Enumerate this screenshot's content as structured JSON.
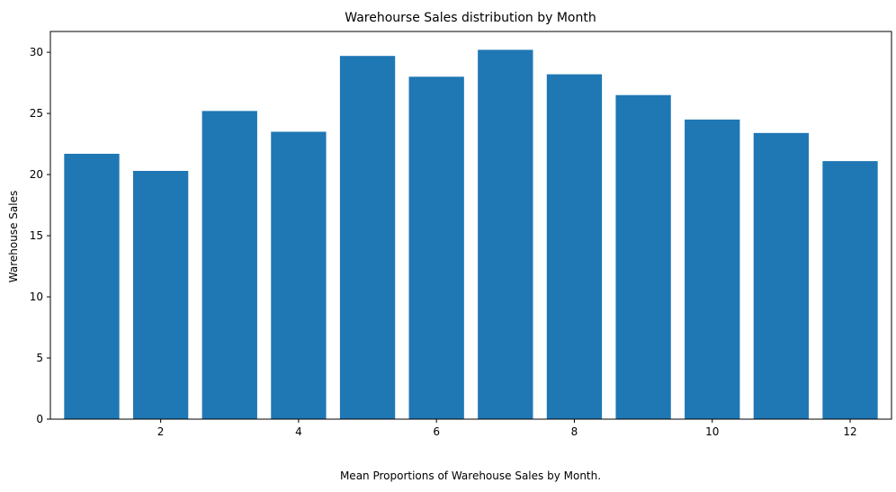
{
  "chart_data": {
    "type": "bar",
    "title": "Warehourse Sales distribution by Month",
    "xlabel": "Mean Proportions of Warehouse Sales by Month.",
    "ylabel": "Warehouse Sales",
    "x": [
      1,
      2,
      3,
      4,
      5,
      6,
      7,
      8,
      9,
      10,
      11,
      12
    ],
    "values": [
      21.7,
      20.3,
      25.2,
      23.5,
      29.7,
      28.0,
      30.2,
      28.2,
      26.5,
      24.5,
      23.4,
      21.1
    ],
    "xlim": [
      0.4,
      12.6
    ],
    "ylim": [
      0,
      31.7
    ],
    "x_ticks": [
      2,
      4,
      6,
      8,
      10,
      12
    ],
    "y_ticks": [
      0,
      5,
      10,
      15,
      20,
      25,
      30
    ],
    "bar_color": "#1f77b4",
    "grid": false,
    "legend": "none"
  }
}
